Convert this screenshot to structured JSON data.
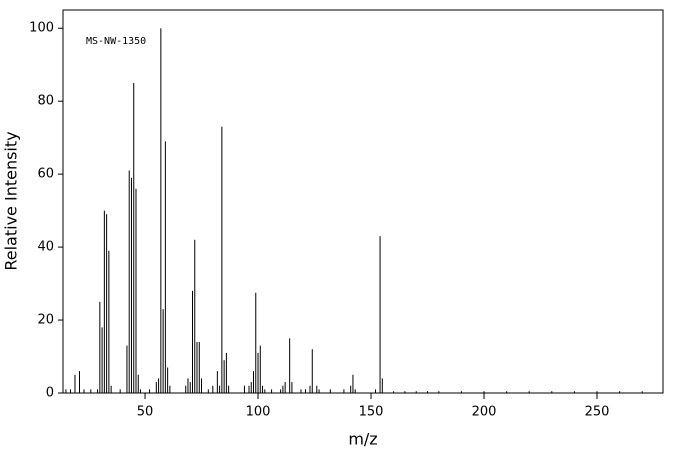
{
  "chart_data": {
    "type": "stem",
    "title": "MS-NW-1350",
    "x_label": "m/z",
    "y_label": "Relative Intensity",
    "color": "#000000",
    "x": [
      15,
      17,
      19,
      21,
      23,
      26,
      29,
      30,
      31,
      32,
      33,
      34,
      35,
      39,
      42,
      43,
      44,
      45,
      46,
      47,
      48,
      52,
      55,
      56,
      57,
      58,
      59,
      60,
      61,
      68,
      69,
      70,
      71,
      72,
      73,
      74,
      75,
      78,
      80,
      82,
      83,
      84,
      85,
      86,
      87,
      94,
      96,
      97,
      98,
      99,
      100,
      101,
      102,
      103,
      106,
      110,
      111,
      112,
      114,
      115,
      119,
      121,
      123,
      124,
      126,
      127,
      132,
      138,
      141,
      142,
      143,
      152,
      154,
      155,
      160,
      165,
      170,
      175,
      180,
      190,
      200,
      210,
      220,
      230,
      240,
      250,
      260,
      270
    ],
    "values": [
      1,
      1,
      5,
      6,
      1,
      1,
      1,
      25,
      18,
      50,
      49,
      39,
      2,
      1,
      13,
      61,
      59,
      85,
      56,
      5,
      1,
      1,
      3,
      4,
      100,
      23,
      69,
      7,
      2,
      2,
      4,
      3,
      28,
      42,
      14,
      14,
      4,
      1,
      2,
      6,
      2,
      73,
      9,
      11,
      2,
      2,
      2,
      3,
      6,
      27.5,
      11,
      13,
      2,
      1,
      1,
      1,
      2,
      3,
      15,
      3,
      1,
      1,
      2,
      12,
      2,
      1,
      1,
      1,
      2,
      5,
      1,
      1,
      43,
      4,
      0.5,
      0.5,
      0.5,
      0.5,
      0.5,
      0.5,
      0.5,
      0.5,
      0.5,
      0.5,
      0.5,
      0.5,
      0.5,
      0.5
    ],
    "xlim": [
      13.7,
      279.2
    ],
    "ylim": [
      0,
      105
    ],
    "xticks": [
      50,
      100,
      150,
      200,
      250
    ],
    "yticks": [
      0,
      20,
      40,
      60,
      80,
      100
    ]
  }
}
